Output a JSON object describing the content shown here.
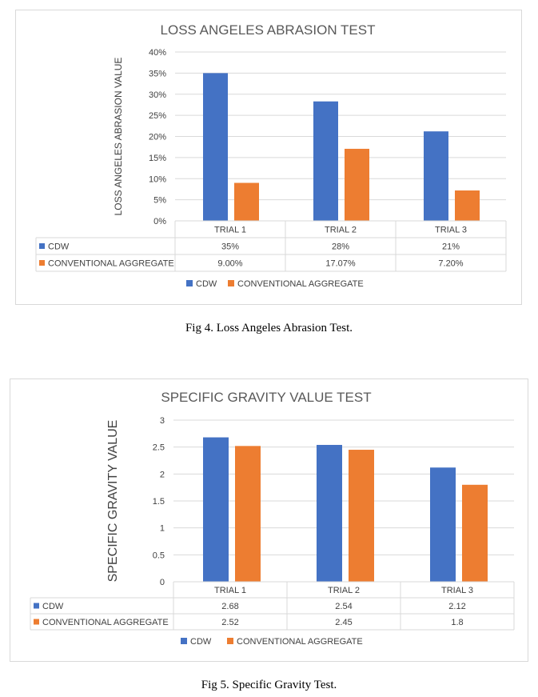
{
  "colors": {
    "cdw": "#4472c4",
    "conventional": "#ed7d31",
    "grid": "#d9d9d9",
    "text": "#404040",
    "title": "#595959"
  },
  "figures": [
    {
      "caption": "Fig 4. Loss Angeles Abrasion Test.",
      "chart_data": {
        "type": "bar",
        "title": "LOSS ANGELES ABRASION TEST",
        "ylabel": "LOSS ANGELES ABRASION VALUE",
        "xlabel": "",
        "categories": [
          "TRIAL 1",
          "TRIAL 2",
          "TRIAL 3"
        ],
        "ylim": [
          0,
          40
        ],
        "yticks": [
          0,
          5,
          10,
          15,
          20,
          25,
          30,
          35,
          40
        ],
        "ytick_labels": [
          "0%",
          "5%",
          "10%",
          "15%",
          "20%",
          "25%",
          "30%",
          "35%",
          "40%"
        ],
        "grid": true,
        "legend": "bottom",
        "series": [
          {
            "name": "CDW",
            "values": [
              35,
              28.3,
              21.2
            ],
            "table_labels": [
              "35%",
              "28%",
              "21%"
            ]
          },
          {
            "name": "CONVENTIONAL AGGREGATE",
            "values": [
              9.0,
              17.07,
              7.2
            ],
            "table_labels": [
              "9.00%",
              "17.07%",
              "7.20%"
            ]
          }
        ]
      }
    },
    {
      "caption": "Fig 5. Specific Gravity Test.",
      "chart_data": {
        "type": "bar",
        "title": "SPECIFIC GRAVITY VALUE TEST",
        "ylabel": "SPECIFIC GRAVITY VALUE",
        "xlabel": "",
        "categories": [
          "TRIAL 1",
          "TRIAL 2",
          "TRIAL 3"
        ],
        "ylim": [
          0,
          3
        ],
        "yticks": [
          0,
          0.5,
          1,
          1.5,
          2,
          2.5,
          3
        ],
        "ytick_labels": [
          "0",
          "0.5",
          "1",
          "1.5",
          "2",
          "2.5",
          "3"
        ],
        "grid": true,
        "legend": "bottom",
        "series": [
          {
            "name": "CDW",
            "values": [
              2.68,
              2.54,
              2.12
            ],
            "table_labels": [
              "2.68",
              "2.54",
              "2.12"
            ]
          },
          {
            "name": "CONVENTIONAL AGGREGATE",
            "values": [
              2.52,
              2.45,
              1.8
            ],
            "table_labels": [
              "2.52",
              "2.45",
              "1.8"
            ]
          }
        ]
      }
    }
  ]
}
